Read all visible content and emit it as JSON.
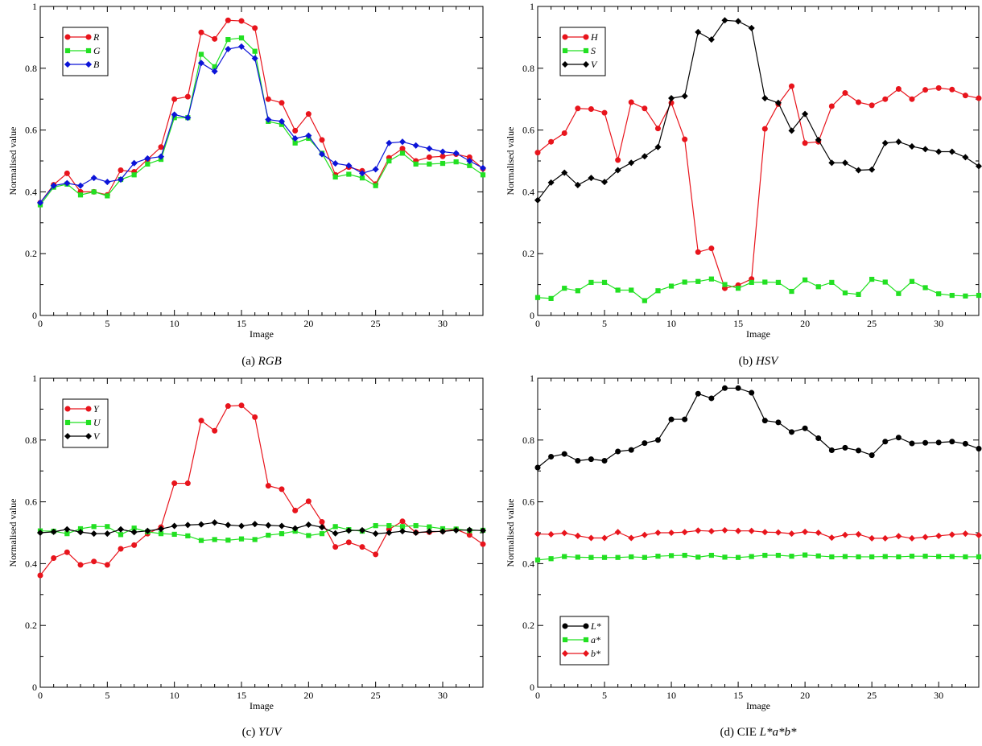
{
  "figure": {
    "panels": [
      {
        "caption_prefix": "(a) ",
        "caption_italic": "RGB"
      },
      {
        "caption_prefix": "(b) ",
        "caption_italic": "HSV"
      },
      {
        "caption_prefix": "(c) ",
        "caption_italic": "YUV"
      },
      {
        "caption_prefix": "(d) CIE ",
        "caption_italic": "L*a*b*"
      }
    ]
  },
  "chart_data": [
    {
      "type": "line",
      "title": "",
      "xlabel": "Image",
      "ylabel": "Normalised value",
      "xlim": [
        0,
        33
      ],
      "ylim": [
        0,
        1
      ],
      "xticks": [
        0,
        5,
        10,
        15,
        20,
        25,
        30
      ],
      "yticks": [
        0,
        0.2,
        0.4,
        0.6,
        0.8,
        1
      ],
      "ytick_labels": [
        "0",
        "0.2",
        "0.4",
        "0.6",
        "0.8",
        "1"
      ],
      "grid": false,
      "legend": "top-left",
      "x": [
        0,
        1,
        2,
        3,
        4,
        5,
        6,
        7,
        8,
        9,
        10,
        11,
        12,
        13,
        14,
        15,
        16,
        17,
        18,
        19,
        20,
        21,
        22,
        23,
        24,
        25,
        26,
        27,
        28,
        29,
        30,
        31,
        32,
        33
      ],
      "series": [
        {
          "name": "R",
          "color": "#e8141c",
          "marker": "circle",
          "values": [
            0.365,
            0.423,
            0.46,
            0.4,
            0.4,
            0.39,
            0.47,
            0.465,
            0.505,
            0.545,
            0.7,
            0.708,
            0.916,
            0.895,
            0.955,
            0.953,
            0.93,
            0.7,
            0.688,
            0.598,
            0.652,
            0.568,
            0.455,
            0.48,
            0.468,
            0.425,
            0.51,
            0.54,
            0.5,
            0.512,
            0.515,
            0.522,
            0.512,
            0.475
          ]
        },
        {
          "name": "G",
          "color": "#22e022",
          "marker": "square",
          "values": [
            0.358,
            0.415,
            0.425,
            0.39,
            0.4,
            0.387,
            0.44,
            0.455,
            0.49,
            0.505,
            0.64,
            0.64,
            0.845,
            0.805,
            0.893,
            0.898,
            0.855,
            0.628,
            0.618,
            0.558,
            0.573,
            0.525,
            0.448,
            0.457,
            0.445,
            0.42,
            0.5,
            0.525,
            0.49,
            0.49,
            0.492,
            0.497,
            0.485,
            0.455
          ]
        },
        {
          "name": "B",
          "color": "#0c14d8",
          "marker": "diamond",
          "values": [
            0.365,
            0.42,
            0.428,
            0.42,
            0.445,
            0.432,
            0.44,
            0.493,
            0.508,
            0.514,
            0.65,
            0.64,
            0.817,
            0.79,
            0.862,
            0.87,
            0.832,
            0.634,
            0.628,
            0.573,
            0.582,
            0.522,
            0.492,
            0.485,
            0.46,
            0.473,
            0.558,
            0.562,
            0.55,
            0.54,
            0.53,
            0.525,
            0.5,
            0.477
          ]
        }
      ]
    },
    {
      "type": "line",
      "title": "",
      "xlabel": "Image",
      "ylabel": "Normalised value",
      "xlim": [
        0,
        33
      ],
      "ylim": [
        0,
        1
      ],
      "xticks": [
        0,
        5,
        10,
        15,
        20,
        25,
        30
      ],
      "yticks": [
        0,
        0.2,
        0.4,
        0.6,
        0.8,
        1
      ],
      "ytick_labels": [
        "0",
        "0.2",
        "0.4",
        "0.6",
        "0.8",
        "1"
      ],
      "grid": false,
      "legend": "top-left",
      "x": [
        0,
        1,
        2,
        3,
        4,
        5,
        6,
        7,
        8,
        9,
        10,
        11,
        12,
        13,
        14,
        15,
        16,
        17,
        18,
        19,
        20,
        21,
        22,
        23,
        24,
        25,
        26,
        27,
        28,
        29,
        30,
        31,
        32,
        33
      ],
      "series": [
        {
          "name": "H",
          "color": "#e8141c",
          "marker": "circle",
          "values": [
            0.527,
            0.562,
            0.59,
            0.67,
            0.668,
            0.656,
            0.503,
            0.69,
            0.67,
            0.605,
            0.688,
            0.57,
            0.205,
            0.217,
            0.088,
            0.098,
            0.118,
            0.604,
            0.684,
            0.742,
            0.558,
            0.562,
            0.677,
            0.72,
            0.69,
            0.68,
            0.7,
            0.733,
            0.7,
            0.73,
            0.736,
            0.731,
            0.712,
            0.703
          ]
        },
        {
          "name": "S",
          "color": "#22e022",
          "marker": "square",
          "values": [
            0.058,
            0.055,
            0.088,
            0.08,
            0.107,
            0.107,
            0.082,
            0.082,
            0.048,
            0.08,
            0.095,
            0.108,
            0.11,
            0.118,
            0.1,
            0.088,
            0.107,
            0.108,
            0.107,
            0.078,
            0.115,
            0.093,
            0.107,
            0.073,
            0.068,
            0.117,
            0.108,
            0.071,
            0.11,
            0.09,
            0.07,
            0.065,
            0.063,
            0.065
          ]
        },
        {
          "name": "V",
          "color": "#000000",
          "marker": "diamond",
          "values": [
            0.373,
            0.43,
            0.462,
            0.422,
            0.445,
            0.432,
            0.47,
            0.494,
            0.515,
            0.545,
            0.703,
            0.71,
            0.917,
            0.893,
            0.955,
            0.952,
            0.93,
            0.703,
            0.688,
            0.598,
            0.652,
            0.568,
            0.494,
            0.494,
            0.47,
            0.472,
            0.558,
            0.562,
            0.547,
            0.538,
            0.53,
            0.53,
            0.512,
            0.483
          ]
        }
      ]
    },
    {
      "type": "line",
      "title": "",
      "xlabel": "Image",
      "ylabel": "Normalised value",
      "xlim": [
        0,
        33
      ],
      "ylim": [
        0,
        1
      ],
      "xticks": [
        0,
        5,
        10,
        15,
        20,
        25,
        30
      ],
      "yticks": [
        0,
        0.2,
        0.4,
        0.6,
        0.8,
        1
      ],
      "ytick_labels": [
        "0",
        "0.2",
        "0.4",
        "0.6",
        "0.8",
        "1"
      ],
      "grid": false,
      "legend": "top-left",
      "x": [
        0,
        1,
        2,
        3,
        4,
        5,
        6,
        7,
        8,
        9,
        10,
        11,
        12,
        13,
        14,
        15,
        16,
        17,
        18,
        19,
        20,
        21,
        22,
        23,
        24,
        25,
        26,
        27,
        28,
        29,
        30,
        31,
        32,
        33
      ],
      "series": [
        {
          "name": "Y",
          "color": "#e8141c",
          "marker": "circle",
          "values": [
            0.362,
            0.418,
            0.437,
            0.396,
            0.407,
            0.396,
            0.448,
            0.46,
            0.497,
            0.518,
            0.66,
            0.66,
            0.863,
            0.83,
            0.91,
            0.912,
            0.874,
            0.652,
            0.641,
            0.572,
            0.602,
            0.535,
            0.454,
            0.469,
            0.454,
            0.43,
            0.511,
            0.537,
            0.501,
            0.502,
            0.505,
            0.511,
            0.493,
            0.463
          ]
        },
        {
          "name": "U",
          "color": "#22e022",
          "marker": "square",
          "values": [
            0.506,
            0.505,
            0.497,
            0.513,
            0.52,
            0.52,
            0.494,
            0.515,
            0.503,
            0.497,
            0.495,
            0.49,
            0.475,
            0.478,
            0.476,
            0.48,
            0.478,
            0.492,
            0.497,
            0.505,
            0.491,
            0.497,
            0.52,
            0.51,
            0.505,
            0.523,
            0.523,
            0.52,
            0.523,
            0.519,
            0.513,
            0.512,
            0.507,
            0.508
          ]
        },
        {
          "name": "V",
          "color": "#000000",
          "marker": "diamond",
          "values": [
            0.5,
            0.503,
            0.511,
            0.502,
            0.497,
            0.497,
            0.511,
            0.502,
            0.506,
            0.512,
            0.522,
            0.525,
            0.527,
            0.533,
            0.525,
            0.522,
            0.528,
            0.524,
            0.522,
            0.514,
            0.526,
            0.518,
            0.498,
            0.507,
            0.508,
            0.497,
            0.5,
            0.505,
            0.5,
            0.504,
            0.504,
            0.508,
            0.509,
            0.507
          ]
        }
      ]
    },
    {
      "type": "line",
      "title": "",
      "xlabel": "Image",
      "ylabel": "Normalised value",
      "xlim": [
        0,
        33
      ],
      "ylim": [
        0,
        1
      ],
      "xticks": [
        0,
        5,
        10,
        15,
        20,
        25,
        30
      ],
      "yticks": [
        0,
        0.2,
        0.4,
        0.6,
        0.8,
        1
      ],
      "ytick_labels": [
        "0",
        "0.2",
        "0.4",
        "0.6",
        "0.8",
        "1"
      ],
      "grid": false,
      "legend": "bottom-left",
      "x": [
        0,
        1,
        2,
        3,
        4,
        5,
        6,
        7,
        8,
        9,
        10,
        11,
        12,
        13,
        14,
        15,
        16,
        17,
        18,
        19,
        20,
        21,
        22,
        23,
        24,
        25,
        26,
        27,
        28,
        29,
        30,
        31,
        32,
        33
      ],
      "series": [
        {
          "name": "L*",
          "color": "#000000",
          "marker": "circle",
          "values": [
            0.711,
            0.746,
            0.755,
            0.733,
            0.738,
            0.733,
            0.763,
            0.768,
            0.79,
            0.8,
            0.867,
            0.867,
            0.95,
            0.935,
            0.968,
            0.968,
            0.953,
            0.863,
            0.857,
            0.826,
            0.838,
            0.806,
            0.767,
            0.775,
            0.766,
            0.751,
            0.795,
            0.808,
            0.789,
            0.791,
            0.792,
            0.795,
            0.788,
            0.772
          ]
        },
        {
          "name": "a*",
          "color": "#22e022",
          "marker": "square",
          "values": [
            0.412,
            0.416,
            0.423,
            0.421,
            0.42,
            0.42,
            0.42,
            0.422,
            0.42,
            0.424,
            0.426,
            0.427,
            0.421,
            0.427,
            0.421,
            0.42,
            0.423,
            0.427,
            0.427,
            0.424,
            0.428,
            0.425,
            0.422,
            0.423,
            0.422,
            0.422,
            0.423,
            0.422,
            0.424,
            0.424,
            0.423,
            0.423,
            0.422,
            0.422
          ]
        },
        {
          "name": "b*",
          "color": "#e8141c",
          "marker": "diamond",
          "values": [
            0.496,
            0.495,
            0.499,
            0.49,
            0.483,
            0.483,
            0.502,
            0.483,
            0.493,
            0.5,
            0.5,
            0.502,
            0.507,
            0.505,
            0.508,
            0.506,
            0.506,
            0.502,
            0.501,
            0.497,
            0.503,
            0.5,
            0.484,
            0.493,
            0.495,
            0.482,
            0.482,
            0.489,
            0.482,
            0.486,
            0.49,
            0.494,
            0.497,
            0.492
          ]
        }
      ]
    }
  ]
}
